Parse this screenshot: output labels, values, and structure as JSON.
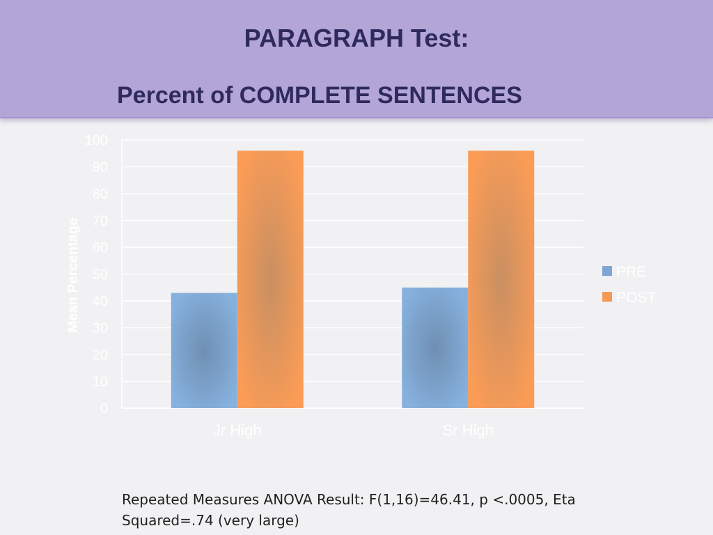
{
  "slide": {
    "title_line1": "PARAGRAPH Test:",
    "title_line2": "Percent of COMPLETE SENTENCES",
    "note_line1": "Repeated Measures ANOVA Result: F(1,16)=46.41, p <.0005,  Eta",
    "note_line2": "Squared=.74  (very large)"
  },
  "colors": {
    "header_bg": "#b3a6d6",
    "title_text": "#2f2a5e",
    "pre": "#7ea6d4",
    "post": "#f59a56",
    "axis_text": "#ffffff"
  },
  "chart_data": {
    "type": "bar",
    "categories": [
      "Jr High",
      "Sr High"
    ],
    "series": [
      {
        "name": "PRE",
        "values": [
          43,
          45
        ]
      },
      {
        "name": "POST",
        "values": [
          96,
          96
        ]
      }
    ],
    "ylabel": "Mean Percentage",
    "xlabel": "",
    "ylim": [
      0,
      100
    ],
    "yticks": [
      0,
      10,
      20,
      30,
      40,
      50,
      60,
      70,
      80,
      90,
      100
    ],
    "grid": true,
    "legend": "right"
  }
}
